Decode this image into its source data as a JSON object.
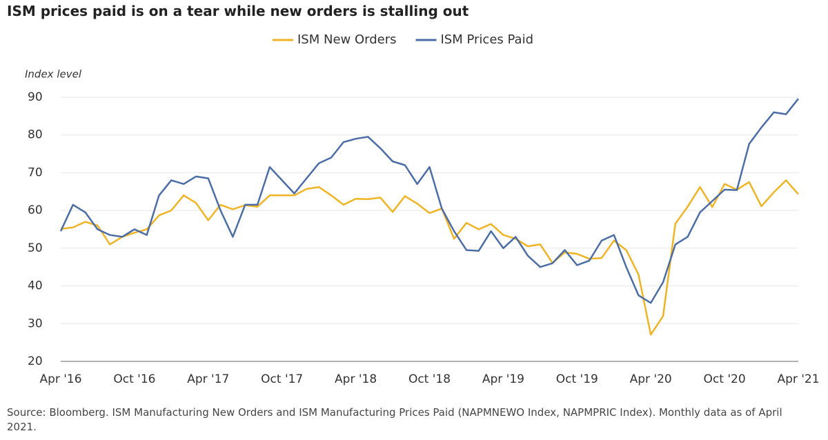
{
  "chart_data": {
    "type": "line",
    "title": "ISM prices paid is on a tear while new orders is stalling out",
    "y_axis_label": "Index level",
    "source": "Source: Bloomberg. ISM Manufacturing New Orders and ISM Manufacturing Prices Paid (NAPMNEWO Index, NAPMPRIC Index). Monthly data as of April 2021.",
    "categories": [
      "Apr '16",
      null,
      null,
      null,
      null,
      null,
      "Oct '16",
      null,
      null,
      null,
      null,
      null,
      "Apr '17",
      null,
      null,
      null,
      null,
      null,
      "Oct '17",
      null,
      null,
      null,
      null,
      null,
      "Apr '18",
      null,
      null,
      null,
      null,
      null,
      "Oct '18",
      null,
      null,
      null,
      null,
      null,
      "Apr '19",
      null,
      null,
      null,
      null,
      null,
      "Oct '19",
      null,
      null,
      null,
      null,
      null,
      "Apr '20",
      null,
      null,
      null,
      null,
      null,
      "Oct '20",
      null,
      null,
      null,
      null,
      null,
      "Apr '21"
    ],
    "series": [
      {
        "name": "ISM New Orders",
        "color": "#f0b323",
        "values": [
          55.1,
          55.5,
          57.0,
          56.0,
          51.0,
          53.0,
          54.1,
          55.0,
          58.7,
          60.0,
          64.0,
          62.0,
          57.4,
          61.5,
          60.3,
          61.4,
          61.0,
          64.0,
          64.0,
          64.0,
          65.7,
          66.2,
          64.0,
          61.5,
          63.1,
          63.0,
          63.4,
          59.6,
          63.8,
          61.8,
          59.3,
          60.5,
          52.5,
          56.7,
          55.0,
          56.4,
          53.5,
          52.5,
          50.5,
          51.0,
          46.1,
          48.9,
          48.5,
          47.2,
          47.4,
          52.0,
          49.5,
          43.0,
          27.1,
          32.0,
          56.5,
          61.0,
          66.2,
          60.9,
          67.0,
          65.5,
          67.5,
          61.1,
          64.8,
          68.0,
          64.3
        ]
      },
      {
        "name": "ISM Prices Paid",
        "color": "#4a6da7",
        "values": [
          54.5,
          61.5,
          59.5,
          55.0,
          53.5,
          53.0,
          55.0,
          53.5,
          64.0,
          68.0,
          67.0,
          69.0,
          68.5,
          60.0,
          53.0,
          61.5,
          61.5,
          71.5,
          68.0,
          64.5,
          68.5,
          72.5,
          74.0,
          78.1,
          79.0,
          79.5,
          76.5,
          73.0,
          72.0,
          67.0,
          71.5,
          60.5,
          54.5,
          49.5,
          49.3,
          54.5,
          50.0,
          53.0,
          48.0,
          45.0,
          46.0,
          49.5,
          45.5,
          46.7,
          52.0,
          53.5,
          45.0,
          37.5,
          35.5,
          41.0,
          51.0,
          53.0,
          59.5,
          62.5,
          65.5,
          65.4,
          77.6,
          82.0,
          86.0,
          85.5,
          89.6
        ]
      }
    ],
    "ylim": [
      20,
      90
    ],
    "yticks": [
      20,
      30,
      40,
      50,
      60,
      70,
      80,
      90
    ],
    "grid": true
  }
}
